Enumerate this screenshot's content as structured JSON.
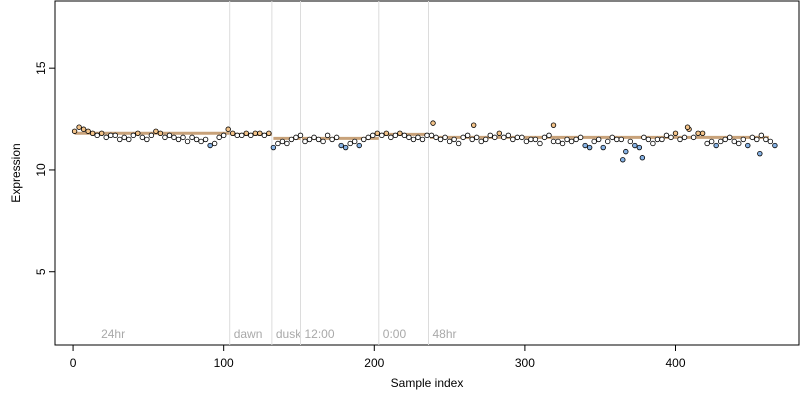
{
  "chart_data": {
    "type": "scatter",
    "title": "",
    "xlabel": "Sample index",
    "ylabel": "Expression",
    "xlim": [
      -12,
      482
    ],
    "ylim": [
      1.4,
      18.3
    ],
    "xticks": [
      0,
      100,
      200,
      300,
      400
    ],
    "yticks": [
      5,
      10,
      15
    ],
    "grid": false,
    "colors": {
      "point_stroke": "#000000",
      "high_fill": "#f4c48a",
      "low_fill": "#87b3e6",
      "mid_fill": "#ffffff",
      "fit_segment": "#c8a27a",
      "separator": "#dcdcdc",
      "separator_label": "#a9a9a9"
    },
    "separators": [
      {
        "x": 104,
        "label": "24hr"
      },
      {
        "x": 132,
        "label": "dawn"
      },
      {
        "x": 151,
        "label": "dusk"
      },
      {
        "x": 203,
        "label": "12:00"
      },
      {
        "x": 236,
        "label": "0:00"
      },
      {
        "x": 462,
        "label": "48hr"
      }
    ],
    "fit_segments": [
      {
        "x0": 1,
        "x1": 104,
        "y": 11.8
      },
      {
        "x0": 105,
        "x1": 132,
        "y": 11.75
      },
      {
        "x0": 133,
        "x1": 151,
        "y": 11.55
      },
      {
        "x0": 152,
        "x1": 203,
        "y": 11.55
      },
      {
        "x0": 204,
        "x1": 236,
        "y": 11.75
      },
      {
        "x0": 237,
        "x1": 462,
        "y": 11.6
      }
    ],
    "series": [
      {
        "x_start": 1,
        "x_step": 3,
        "values": [
          11.9,
          12.1,
          12.0,
          11.9,
          11.8,
          11.7,
          11.8,
          11.6,
          11.7,
          11.7,
          11.5,
          11.6,
          11.5,
          11.7,
          11.8,
          11.6,
          11.5,
          11.7,
          11.9,
          11.8,
          11.6,
          11.7,
          11.6,
          11.5,
          11.6,
          11.4,
          11.6,
          11.5,
          11.4,
          11.5,
          11.2,
          11.3,
          11.6,
          11.7,
          12.0,
          11.8,
          11.7,
          11.7,
          11.8,
          11.7,
          11.8,
          11.8,
          11.7,
          11.8,
          11.1,
          11.3,
          11.4,
          11.3,
          11.5,
          11.6,
          11.7,
          11.4,
          11.5,
          11.6,
          11.5,
          11.4,
          11.7,
          11.5,
          11.6,
          11.2,
          11.1,
          11.3,
          11.4,
          11.2,
          11.5,
          11.6,
          11.7,
          11.8,
          11.7,
          11.8,
          11.6,
          11.7,
          11.8,
          11.7,
          11.6,
          11.5,
          11.6,
          11.5,
          11.7,
          11.7,
          11.6,
          11.5,
          11.6,
          11.4,
          11.5,
          11.3,
          11.6,
          11.7,
          11.5,
          11.6,
          11.4,
          11.5,
          11.7,
          11.6,
          11.8,
          11.6,
          11.7,
          11.5,
          11.6,
          11.6,
          11.4,
          11.5,
          11.5,
          11.3,
          11.6,
          11.7,
          11.4,
          11.4,
          11.3,
          11.5,
          11.4,
          11.5,
          11.6,
          11.2,
          11.1,
          11.4,
          11.5,
          11.1,
          11.4,
          11.6,
          11.5,
          11.5,
          10.9,
          11.4,
          11.2,
          11.1,
          11.6,
          11.5,
          11.3,
          11.5,
          11.5,
          11.7,
          11.6,
          11.8,
          11.5,
          11.6,
          12.0,
          11.6,
          11.8,
          11.8,
          11.3,
          11.4,
          11.2,
          11.4,
          11.5,
          11.6,
          11.4,
          11.3,
          11.5,
          11.2,
          11.6,
          11.5,
          11.7,
          11.5,
          11.4,
          11.2
        ]
      }
    ],
    "extra_points": [
      {
        "x": 239,
        "y": 12.3
      },
      {
        "x": 266,
        "y": 12.2
      },
      {
        "x": 319,
        "y": 12.2
      },
      {
        "x": 365,
        "y": 10.5
      },
      {
        "x": 378,
        "y": 10.6
      },
      {
        "x": 408,
        "y": 12.1
      },
      {
        "x": 456,
        "y": 10.8
      }
    ]
  }
}
